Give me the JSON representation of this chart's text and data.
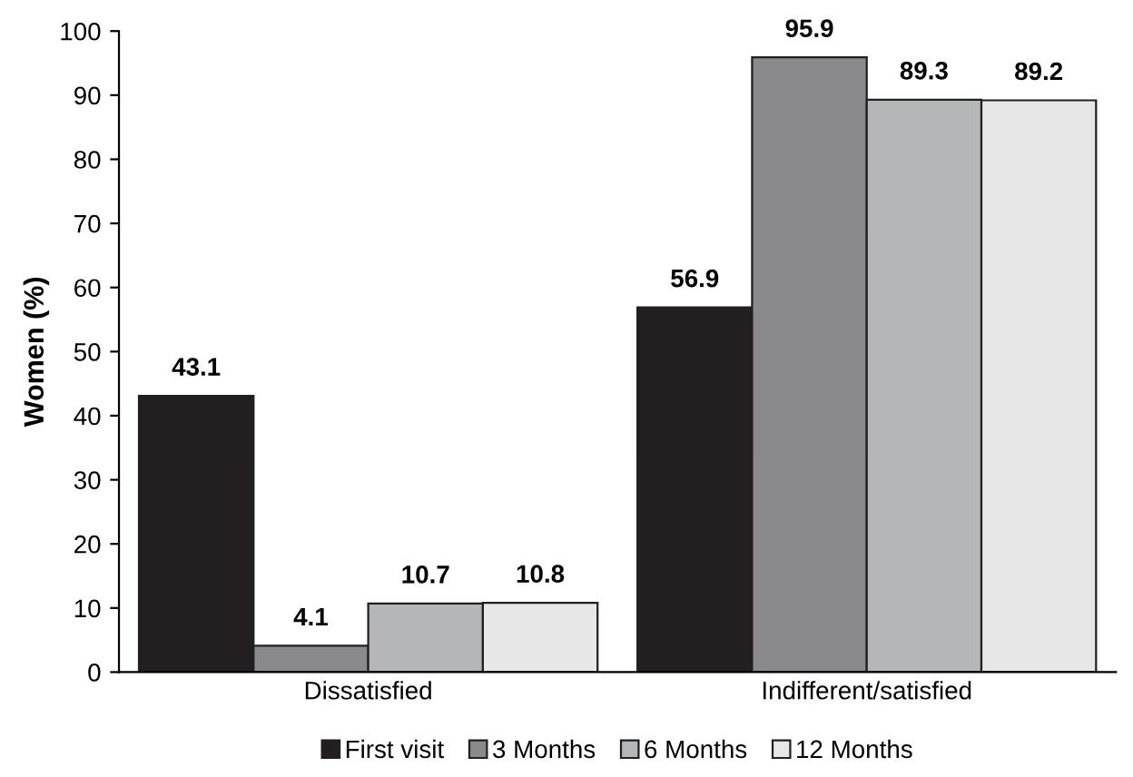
{
  "chart_data": {
    "type": "bar",
    "ylabel": "Women (%)",
    "categories": [
      "Dissatisfied",
      "Indifferent/satisfied"
    ],
    "series": [
      {
        "name": "First visit",
        "color": "#231f20",
        "values": [
          43.1,
          56.9
        ]
      },
      {
        "name": "3 Months",
        "color": "#8a8a8c",
        "values": [
          4.1,
          95.9
        ]
      },
      {
        "name": "6 Months",
        "color": "#b5b6b8",
        "values": [
          10.7,
          89.3
        ]
      },
      {
        "name": "12 Months",
        "color": "#e6e7e6",
        "values": [
          10.8,
          89.2
        ]
      }
    ],
    "ylim": [
      0,
      100
    ],
    "yticks": [
      0,
      10,
      20,
      30,
      40,
      50,
      60,
      70,
      80,
      90,
      100
    ],
    "data_labels": true,
    "grid": false,
    "legend": "bottom"
  }
}
